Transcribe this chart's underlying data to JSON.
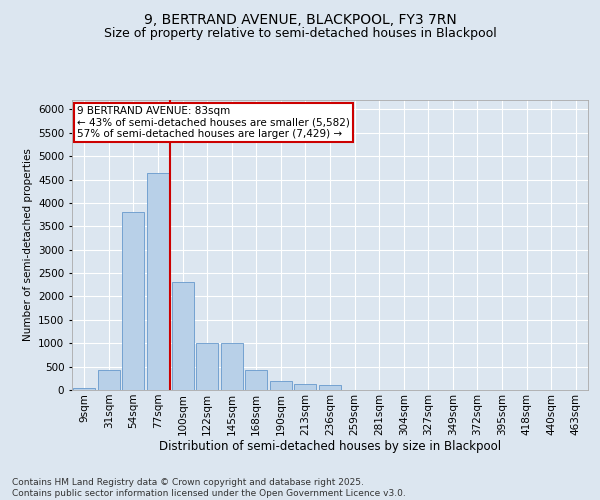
{
  "title": "9, BERTRAND AVENUE, BLACKPOOL, FY3 7RN",
  "subtitle": "Size of property relative to semi-detached houses in Blackpool",
  "xlabel": "Distribution of semi-detached houses by size in Blackpool",
  "ylabel": "Number of semi-detached properties",
  "categories": [
    "9sqm",
    "31sqm",
    "54sqm",
    "77sqm",
    "100sqm",
    "122sqm",
    "145sqm",
    "168sqm",
    "190sqm",
    "213sqm",
    "236sqm",
    "259sqm",
    "281sqm",
    "304sqm",
    "327sqm",
    "349sqm",
    "372sqm",
    "395sqm",
    "418sqm",
    "440sqm",
    "463sqm"
  ],
  "bar_values": [
    50,
    430,
    3800,
    4650,
    2300,
    1000,
    1000,
    420,
    200,
    120,
    110,
    0,
    0,
    0,
    0,
    0,
    0,
    0,
    0,
    0,
    0
  ],
  "bar_color": "#b8d0e8",
  "bar_edge_color": "#6699cc",
  "bg_color": "#dce6f0",
  "grid_color": "#ffffff",
  "vline_x": 3.5,
  "vline_color": "#cc0000",
  "annotation_text": "9 BERTRAND AVENUE: 83sqm\n← 43% of semi-detached houses are smaller (5,582)\n57% of semi-detached houses are larger (7,429) →",
  "annotation_box_facecolor": "#ffffff",
  "annotation_box_edgecolor": "#cc0000",
  "footer_text": "Contains HM Land Registry data © Crown copyright and database right 2025.\nContains public sector information licensed under the Open Government Licence v3.0.",
  "ylim": [
    0,
    6200
  ],
  "yticks": [
    0,
    500,
    1000,
    1500,
    2000,
    2500,
    3000,
    3500,
    4000,
    4500,
    5000,
    5500,
    6000
  ],
  "title_fontsize": 10,
  "subtitle_fontsize": 9,
  "xlabel_fontsize": 8.5,
  "ylabel_fontsize": 7.5,
  "tick_fontsize": 7.5,
  "annotation_fontsize": 7.5,
  "footer_fontsize": 6.5
}
